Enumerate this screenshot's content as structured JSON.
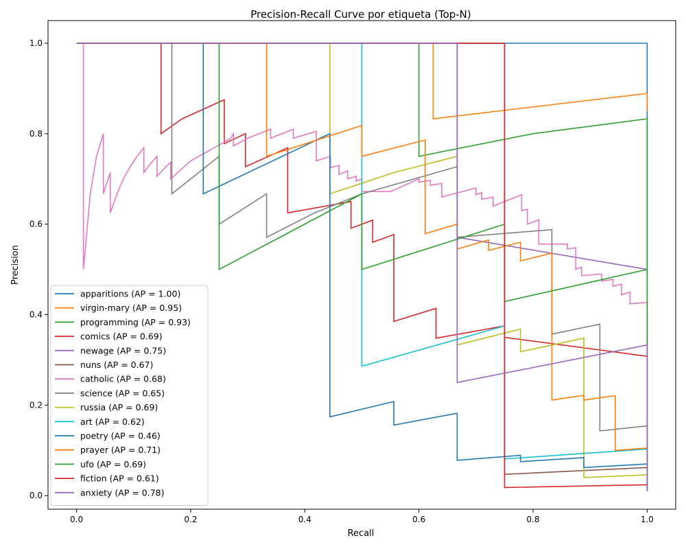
{
  "chart_data": {
    "type": "line",
    "title": "Precision-Recall Curve por etiqueta (Top-N)",
    "xlabel": "Recall",
    "ylabel": "Precision",
    "xlim": [
      -0.05,
      1.05
    ],
    "ylim": [
      -0.03,
      1.05
    ],
    "xticks": [
      0.0,
      0.2,
      0.4,
      0.6,
      0.8,
      1.0
    ],
    "yticks": [
      0.0,
      0.2,
      0.4,
      0.6,
      0.8,
      1.0
    ],
    "grid": false,
    "legend_position": "lower-left",
    "series": [
      {
        "name": "apparitions (AP = 1.00)",
        "color": "#1f77b4",
        "points": [
          [
            0,
            1
          ],
          [
            1,
            1
          ],
          [
            1,
            0.5
          ]
        ]
      },
      {
        "name": "virgin-mary (AP = 0.95)",
        "color": "#ff7f0e",
        "points": [
          [
            0,
            1
          ],
          [
            0.625,
            1
          ],
          [
            0.625,
            0.833
          ],
          [
            1,
            0.889
          ],
          [
            1,
            0.85
          ]
        ]
      },
      {
        "name": "programming (AP = 0.93)",
        "color": "#2ca02c",
        "points": [
          [
            0,
            1
          ],
          [
            0.6,
            1
          ],
          [
            0.6,
            0.75
          ],
          [
            0.8,
            0.8
          ],
          [
            1,
            0.833
          ],
          [
            1,
            0.5
          ]
        ]
      },
      {
        "name": "comics (AP = 0.69)",
        "color": "#d62728",
        "points": [
          [
            0,
            1
          ],
          [
            0.148,
            1
          ],
          [
            0.148,
            0.8
          ],
          [
            0.185,
            0.833
          ],
          [
            0.259,
            0.875
          ],
          [
            0.259,
            0.778
          ],
          [
            0.296,
            0.8
          ],
          [
            0.296,
            0.727
          ],
          [
            0.37,
            0.769
          ],
          [
            0.37,
            0.625
          ],
          [
            0.481,
            0.65
          ],
          [
            0.481,
            0.591
          ],
          [
            0.519,
            0.609
          ],
          [
            0.519,
            0.56
          ],
          [
            0.556,
            0.577
          ],
          [
            0.556,
            0.385
          ],
          [
            0.63,
            0.414
          ],
          [
            0.63,
            0.348
          ],
          [
            0.75,
            0.375
          ],
          [
            0.75,
            0.35
          ],
          [
            1,
            0.308
          ]
        ]
      },
      {
        "name": "newage (AP = 0.75)",
        "color": "#9467bd",
        "points": [
          [
            0,
            1
          ],
          [
            0.667,
            1
          ],
          [
            0.667,
            0.571
          ],
          [
            1,
            0.5
          ],
          [
            1,
            0.333
          ]
        ]
      },
      {
        "name": "nuns (AP = 0.67)",
        "color": "#8c564b",
        "points": [
          [
            0,
            1
          ],
          [
            0.75,
            1
          ],
          [
            0.75,
            0.047
          ],
          [
            1,
            0.062
          ],
          [
            1,
            0.02
          ]
        ]
      },
      {
        "name": "catholic (AP = 0.68)",
        "color": "#e377c2",
        "points": [
          [
            0,
            1
          ],
          [
            0.012,
            1
          ],
          [
            0.012,
            0.5
          ],
          [
            0.024,
            0.667
          ],
          [
            0.035,
            0.75
          ],
          [
            0.047,
            0.8
          ],
          [
            0.047,
            0.667
          ],
          [
            0.059,
            0.714
          ],
          [
            0.059,
            0.625
          ],
          [
            0.071,
            0.667
          ],
          [
            0.082,
            0.7
          ],
          [
            0.094,
            0.727
          ],
          [
            0.106,
            0.75
          ],
          [
            0.118,
            0.769
          ],
          [
            0.118,
            0.714
          ],
          [
            0.129,
            0.733
          ],
          [
            0.141,
            0.75
          ],
          [
            0.141,
            0.706
          ],
          [
            0.153,
            0.722
          ],
          [
            0.165,
            0.737
          ],
          [
            0.165,
            0.7
          ],
          [
            0.2,
            0.74
          ],
          [
            0.25,
            0.775
          ],
          [
            0.27,
            0.79
          ],
          [
            0.275,
            0.8
          ],
          [
            0.275,
            0.773
          ],
          [
            0.3,
            0.79
          ],
          [
            0.34,
            0.81
          ],
          [
            0.34,
            0.79
          ],
          [
            0.38,
            0.81
          ],
          [
            0.38,
            0.79
          ],
          [
            0.42,
            0.805
          ],
          [
            0.42,
            0.74
          ],
          [
            0.445,
            0.75
          ],
          [
            0.445,
            0.725
          ],
          [
            0.46,
            0.73
          ],
          [
            0.46,
            0.71
          ],
          [
            0.475,
            0.718
          ],
          [
            0.475,
            0.7
          ],
          [
            0.49,
            0.706
          ],
          [
            0.49,
            0.695
          ],
          [
            0.5,
            0.7
          ],
          [
            0.5,
            0.672
          ],
          [
            0.55,
            0.672
          ],
          [
            0.6,
            0.7
          ],
          [
            0.6,
            0.693
          ],
          [
            0.62,
            0.697
          ],
          [
            0.62,
            0.686
          ],
          [
            0.64,
            0.69
          ],
          [
            0.64,
            0.66
          ],
          [
            0.7,
            0.68
          ],
          [
            0.7,
            0.665
          ],
          [
            0.71,
            0.67
          ],
          [
            0.71,
            0.655
          ],
          [
            0.73,
            0.66
          ],
          [
            0.73,
            0.64
          ],
          [
            0.78,
            0.665
          ],
          [
            0.78,
            0.63
          ],
          [
            0.79,
            0.633
          ],
          [
            0.79,
            0.6
          ],
          [
            0.81,
            0.61
          ],
          [
            0.81,
            0.556
          ],
          [
            0.86,
            0.556
          ],
          [
            0.86,
            0.545
          ],
          [
            0.875,
            0.548
          ],
          [
            0.875,
            0.5
          ],
          [
            0.885,
            0.505
          ],
          [
            0.885,
            0.486
          ],
          [
            0.92,
            0.49
          ],
          [
            0.92,
            0.474
          ],
          [
            0.94,
            0.478
          ],
          [
            0.94,
            0.463
          ],
          [
            0.955,
            0.467
          ],
          [
            0.955,
            0.444
          ],
          [
            0.97,
            0.45
          ],
          [
            0.97,
            0.424
          ],
          [
            1,
            0.427
          ],
          [
            1,
            0.01
          ]
        ]
      },
      {
        "name": "science (AP = 0.65)",
        "color": "#7f7f7f",
        "points": [
          [
            0,
            1
          ],
          [
            0.167,
            1
          ],
          [
            0.167,
            0.667
          ],
          [
            0.25,
            0.75
          ],
          [
            0.25,
            0.6
          ],
          [
            0.333,
            0.667
          ],
          [
            0.333,
            0.571
          ],
          [
            0.417,
            0.625
          ],
          [
            0.5,
            0.667
          ],
          [
            0.667,
            0.727
          ],
          [
            0.667,
            0.571
          ],
          [
            0.833,
            0.588
          ],
          [
            0.833,
            0.357
          ],
          [
            0.917,
            0.379
          ],
          [
            0.917,
            0.143
          ],
          [
            1,
            0.154
          ],
          [
            1,
            0.02
          ]
        ]
      },
      {
        "name": "russia (AP = 0.69)",
        "color": "#bcbd22",
        "points": [
          [
            0,
            1
          ],
          [
            0.444,
            1
          ],
          [
            0.444,
            0.667
          ],
          [
            0.556,
            0.714
          ],
          [
            0.667,
            0.75
          ],
          [
            0.667,
            0.333
          ],
          [
            0.778,
            0.368
          ],
          [
            0.778,
            0.318
          ],
          [
            0.889,
            0.348
          ],
          [
            0.889,
            0.04
          ],
          [
            1,
            0.046
          ],
          [
            1,
            0.02
          ]
        ]
      },
      {
        "name": "art (AP = 0.62)",
        "color": "#17becf",
        "points": [
          [
            0,
            1
          ],
          [
            0.5,
            1
          ],
          [
            0.5,
            0.286
          ],
          [
            0.75,
            0.375
          ],
          [
            0.75,
            0.081
          ],
          [
            1,
            0.103
          ],
          [
            1,
            0.02
          ]
        ]
      },
      {
        "name": "poetry (AP = 0.46)",
        "color": "#1f77b4",
        "points": [
          [
            0,
            1
          ],
          [
            0.222,
            1
          ],
          [
            0.222,
            0.667
          ],
          [
            0.444,
            0.8
          ],
          [
            0.444,
            0.174
          ],
          [
            0.556,
            0.208
          ],
          [
            0.556,
            0.156
          ],
          [
            0.667,
            0.182
          ],
          [
            0.667,
            0.078
          ],
          [
            0.778,
            0.089
          ],
          [
            0.778,
            0.075
          ],
          [
            0.889,
            0.084
          ],
          [
            0.889,
            0.062
          ],
          [
            1,
            0.07
          ],
          [
            1,
            0.02
          ]
        ]
      },
      {
        "name": "prayer (AP = 0.71)",
        "color": "#ff7f0e",
        "points": [
          [
            0,
            1
          ],
          [
            0.333,
            1
          ],
          [
            0.333,
            0.75
          ],
          [
            0.5,
            0.818
          ],
          [
            0.5,
            0.75
          ],
          [
            0.611,
            0.786
          ],
          [
            0.611,
            0.579
          ],
          [
            0.667,
            0.6
          ],
          [
            0.667,
            0.545
          ],
          [
            0.722,
            0.565
          ],
          [
            0.722,
            0.542
          ],
          [
            0.778,
            0.56
          ],
          [
            0.778,
            0.519
          ],
          [
            0.833,
            0.536
          ],
          [
            0.833,
            0.211
          ],
          [
            0.889,
            0.222
          ],
          [
            0.889,
            0.211
          ],
          [
            0.944,
            0.221
          ],
          [
            0.944,
            0.1
          ],
          [
            1,
            0.105
          ],
          [
            1,
            0.02
          ]
        ]
      },
      {
        "name": "ufo (AP = 0.69)",
        "color": "#2ca02c",
        "points": [
          [
            0,
            1
          ],
          [
            0.25,
            1
          ],
          [
            0.25,
            0.5
          ],
          [
            0.5,
            0.667
          ],
          [
            0.5,
            0.5
          ],
          [
            0.75,
            0.6
          ],
          [
            0.75,
            0.429
          ],
          [
            1,
            0.5
          ],
          [
            1,
            0.05
          ]
        ]
      },
      {
        "name": "fiction (AP = 0.61)",
        "color": "#d62728",
        "points": [
          [
            0,
            1
          ],
          [
            0.75,
            1
          ],
          [
            0.75,
            0.018
          ],
          [
            1,
            0.024
          ],
          [
            1,
            0.01
          ]
        ]
      },
      {
        "name": "anxiety (AP = 0.78)",
        "color": "#9467bd",
        "points": [
          [
            0,
            1
          ],
          [
            0.667,
            1
          ],
          [
            0.667,
            0.25
          ],
          [
            1,
            0.333
          ],
          [
            1,
            0.01
          ]
        ]
      }
    ]
  }
}
